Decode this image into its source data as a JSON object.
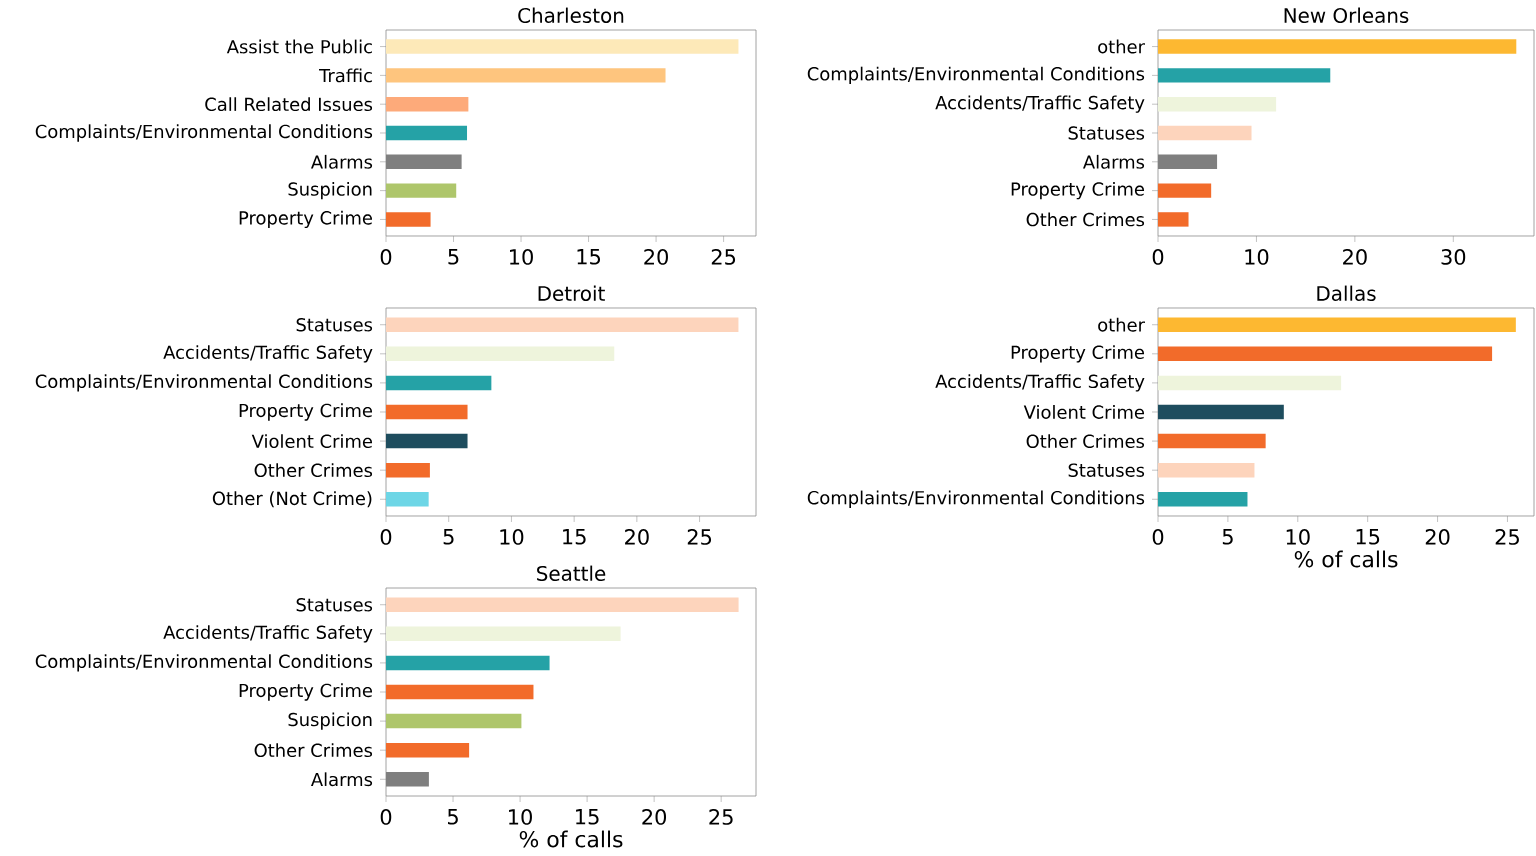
{
  "chart_data": [
    {
      "type": "bar",
      "orientation": "horizontal",
      "title": "Charleston",
      "categories": [
        "Assist the Public",
        "Traffic",
        "Call Related Issues",
        "Complaints/Environmental Conditions",
        "Alarms",
        "Suspicion",
        "Property Crime"
      ],
      "values": [
        26.1,
        20.7,
        6.1,
        6.0,
        5.6,
        5.2,
        3.3
      ],
      "colors": [
        "#fde9b8",
        "#fec57e",
        "#fdaa7a",
        "#25a2a6",
        "#7f7f7f",
        "#aec66b",
        "#f26b2a"
      ],
      "xlim": [
        0,
        27.4
      ],
      "xticks": [
        0,
        5,
        10,
        15,
        20,
        25
      ]
    },
    {
      "type": "bar",
      "orientation": "horizontal",
      "title": "New Orleans",
      "categories": [
        "other",
        "Complaints/Environmental Conditions",
        "Accidents/Traffic Safety",
        "Statuses",
        "Alarms",
        "Property Crime",
        "Other Crimes"
      ],
      "values": [
        36.4,
        17.5,
        12.0,
        9.5,
        6.0,
        5.4,
        3.1
      ],
      "colors": [
        "#fdb831",
        "#25a2a6",
        "#eef4dc",
        "#fdd4bc",
        "#7f7f7f",
        "#f26b2a",
        "#f26b2a"
      ],
      "xlim": [
        0,
        38.2
      ],
      "xticks": [
        0,
        10,
        20,
        30
      ]
    },
    {
      "type": "bar",
      "orientation": "horizontal",
      "title": "Detroit",
      "categories": [
        "Statuses",
        "Accidents/Traffic Safety",
        "Complaints/Environmental Conditions",
        "Property Crime",
        "Violent Crime",
        "Other Crimes",
        "Other (Not Crime)"
      ],
      "values": [
        28.1,
        18.2,
        8.4,
        6.5,
        6.5,
        3.5,
        3.4
      ],
      "colors": [
        "#fdd4bc",
        "#eef4dc",
        "#25a2a6",
        "#f26b2a",
        "#1e4d5e",
        "#f26b2a",
        "#6dd6e6"
      ],
      "xlim": [
        0,
        29.5
      ],
      "xticks": [
        0,
        5,
        10,
        15,
        20,
        25
      ]
    },
    {
      "type": "bar",
      "orientation": "horizontal",
      "title": "Dallas",
      "xlabel": "% of calls",
      "categories": [
        "other",
        "Property Crime",
        "Accidents/Traffic Safety",
        "Violent Crime",
        "Other Crimes",
        "Statuses",
        "Complaints/Environmental Conditions"
      ],
      "values": [
        25.6,
        23.9,
        13.1,
        9.0,
        7.7,
        6.9,
        6.4
      ],
      "colors": [
        "#fdb831",
        "#f26b2a",
        "#eef4dc",
        "#1e4d5e",
        "#f26b2a",
        "#fdd4bc",
        "#25a2a6"
      ],
      "xlim": [
        0,
        26.9
      ],
      "xticks": [
        0,
        5,
        10,
        15,
        20,
        25
      ]
    },
    {
      "type": "bar",
      "orientation": "horizontal",
      "title": "Seattle",
      "xlabel": "% of calls",
      "categories": [
        "Statuses",
        "Accidents/Traffic Safety",
        "Complaints/Environmental Conditions",
        "Property Crime",
        "Suspicion",
        "Other Crimes",
        "Alarms"
      ],
      "values": [
        26.3,
        17.5,
        12.2,
        11.0,
        10.1,
        6.2,
        3.2
      ],
      "colors": [
        "#fdd4bc",
        "#eef4dc",
        "#25a2a6",
        "#f26b2a",
        "#aec66b",
        "#f26b2a",
        "#7f7f7f"
      ],
      "xlim": [
        0,
        27.6
      ],
      "xticks": [
        0,
        5,
        10,
        15,
        20,
        25
      ]
    }
  ]
}
